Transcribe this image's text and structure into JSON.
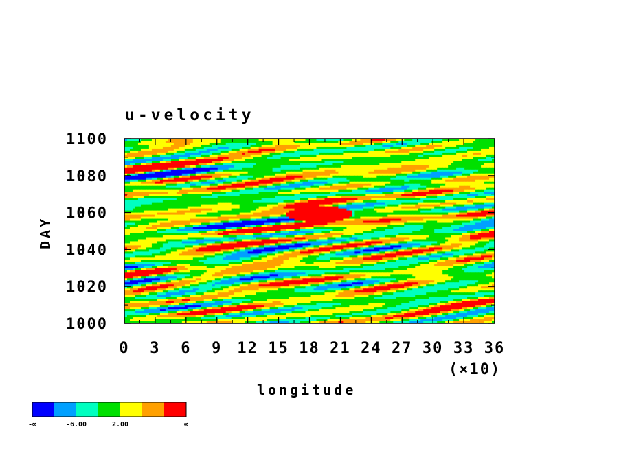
{
  "chart_data": {
    "type": "heatmap",
    "title": "u-velocity",
    "xlabel": "longitude",
    "ylabel": "DAY",
    "x_multiplier_label": "(×10)",
    "xlim": [
      0,
      36
    ],
    "ylim": [
      1000,
      1100
    ],
    "x_ticks": [
      "0",
      "3",
      "6",
      "9",
      "12",
      "15",
      "18",
      "21",
      "24",
      "27",
      "30",
      "33",
      "36"
    ],
    "y_ticks": [
      "1000",
      "1020",
      "1040",
      "1060",
      "1080",
      "1100"
    ],
    "colorbar": {
      "colors": [
        "#0000ff",
        "#00a0ff",
        "#00ffc0",
        "#00e000",
        "#ffff00",
        "#ffa000",
        "#ff0000"
      ],
      "labels": [
        "-∞",
        "-6.00",
        "2.00",
        "∞"
      ]
    },
    "features": [
      {
        "description_label": "",
        "lon": 19,
        "day": 1059,
        "level": 6
      }
    ]
  }
}
